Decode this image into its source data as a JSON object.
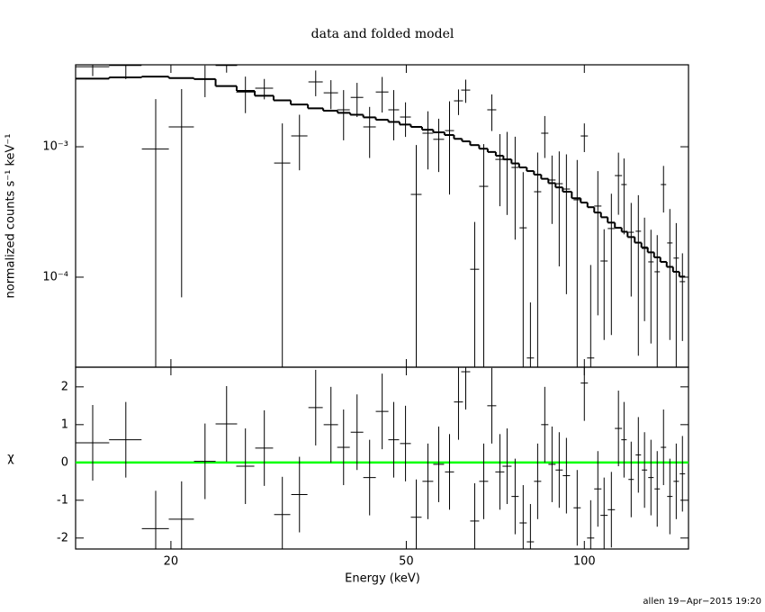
{
  "chart_data": [
    {
      "type": "errorbar",
      "title": "data and folded model",
      "ylabel": "normalized counts s⁻¹ keV⁻¹",
      "xscale": "log",
      "yscale": "log",
      "xlim": [
        13.8,
        150
      ],
      "ylim": [
        2.04e-05,
        0.00425
      ],
      "xticks": [
        20,
        50,
        100
      ],
      "yticks": [
        {
          "value": 0.001,
          "label": "10⁻³"
        },
        {
          "value": 0.0001,
          "label": "10⁻⁴"
        }
      ],
      "x": [
        14.75,
        16.78,
        18.85,
        20.85,
        22.84,
        24.84,
        26.73,
        28.77,
        30.86,
        32.99,
        35.14,
        37.29,
        39.17,
        41.28,
        43.35,
        45.52,
        47.62,
        49.85,
        51.98,
        54.39,
        56.73,
        59.17,
        61.27,
        63.02,
        65.26,
        67.59,
        69.75,
        71.98,
        74.02,
        76.38,
        78.81,
        81.07,
        83.38,
        85.73,
        88.18,
        90.68,
        93.26,
        97.25,
        100.0,
        102.5,
        105.4,
        108.0,
        111.1,
        114.2,
        116.7,
        120.0,
        123.4,
        126.4,
        129.6,
        132.8,
        136.1,
        139.5,
        143.0,
        146.5
      ],
      "xerr": [
        0.98,
        1.06,
        0.99,
        1.02,
        0.96,
        1.04,
        0.94,
        1.0,
        0.97,
        1.04,
        0.98,
        1.04,
        0.96,
        1.01,
        1.06,
        1.12,
        1.0,
        1.05,
        1.09,
        1.14,
        1.19,
        1.04,
        1.07,
        1.1,
        1.14,
        1.18,
        1.22,
        1.26,
        1.3,
        1.07,
        1.1,
        1.13,
        1.17,
        1.2,
        1.23,
        1.27,
        1.31,
        1.36,
        1.4,
        1.43,
        1.48,
        1.51,
        1.56,
        1.6,
        1.23,
        1.26,
        1.3,
        1.33,
        1.36,
        1.39,
        1.43,
        1.46,
        1.5,
        1.54
      ],
      "series": [
        {
          "color": "#000000",
          "values": [
            0.00411,
            0.0042,
            0.00096,
            0.00142,
            0.0033,
            0.0042,
            0.00263,
            0.00281,
            0.000751,
            0.00121,
            0.00314,
            0.00259,
            0.00192,
            0.00239,
            0.00142,
            0.00263,
            0.00192,
            0.00169,
            0.000431,
            0.00127,
            0.00114,
            0.00133,
            0.00225,
            0.00272,
            0.000115,
            0.000497,
            0.00192,
            0.0008,
            0.0008,
            0.000694,
            0.000239,
            2.4e-05,
            0.000452,
            0.00127,
            0.000556,
            0.000521,
            0.000474,
            0.000392,
            0.00121,
            2.4e-05,
            0.000351,
            0.000133,
            0.000236,
            0.000601,
            0.000513,
            0.000221,
            0.000225,
            0.000166,
            0.000131,
            0.00011,
            0.000513,
            0.000183,
            0.00014,
            9.24e-05
          ],
          "yerr": [
            0.00063,
            0.0009,
            0.00136,
            0.00135,
            0.0009,
            0.0005,
            0.00082,
            0.0005,
            0.00076,
            0.00055,
            0.0007,
            0.00065,
            0.0008,
            0.0007,
            0.0006,
            0.0008,
            0.0008,
            0.0005,
            0.0006,
            0.0006,
            0.0005,
            0.0009,
            0.0005,
            0.00055,
            0.00015,
            0.00055,
            0.0006,
            0.00045,
            0.0005,
            0.0005,
            0.0004,
            4e-05,
            0.00045,
            0.00045,
            0.0003,
            0.0004,
            0.0004,
            0.0004,
            0.0003,
            0.0001,
            0.0003,
            0.0001,
            0.0002,
            0.0003,
            0.0003,
            0.00015,
            0.0002,
            0.00012,
            0.0001,
            0.0001,
            0.0002,
            0.00015,
            0.00012,
            6e-05
          ]
        },
        {
          "color": "#000000",
          "step": true,
          "values": [
            0.00333,
            0.0034,
            0.00345,
            0.00336,
            0.0033,
            0.00292,
            0.00268,
            0.00246,
            0.00227,
            0.00211,
            0.00197,
            0.00189,
            0.00182,
            0.00176,
            0.00168,
            0.00161,
            0.00155,
            0.00148,
            0.00142,
            0.00135,
            0.00129,
            0.00123,
            0.00115,
            0.0011,
            0.00103,
            0.000966,
            0.000912,
            0.000853,
            0.0008,
            0.000745,
            0.000694,
            0.000651,
            0.000611,
            0.000568,
            0.000526,
            0.000488,
            0.000452,
            0.000403,
            0.000373,
            0.000344,
            0.000313,
            0.000288,
            0.000262,
            0.000239,
            0.000223,
            0.000203,
            0.000184,
            0.000169,
            0.000155,
            0.000142,
            0.000131,
            0.00012,
            0.00011,
            0.000101
          ]
        }
      ]
    },
    {
      "type": "errorbar",
      "ylabel": "χ",
      "xlabel": "Energy (keV)",
      "xscale": "log",
      "xlim": [
        13.8,
        150
      ],
      "ylim": [
        -2.29,
        2.52
      ],
      "xticks": [
        20,
        50,
        100
      ],
      "yticks": [
        -2,
        -1,
        0,
        1,
        2
      ],
      "hline": 0,
      "hline_color": "#00ff00",
      "x": [
        14.75,
        16.78,
        18.85,
        20.85,
        22.84,
        24.84,
        26.73,
        28.77,
        30.86,
        32.99,
        35.14,
        37.29,
        39.17,
        41.28,
        43.35,
        45.52,
        47.62,
        49.85,
        51.98,
        54.39,
        56.73,
        59.17,
        61.27,
        63.02,
        65.26,
        67.59,
        69.75,
        71.98,
        74.02,
        76.38,
        78.81,
        81.07,
        83.38,
        85.73,
        88.18,
        90.68,
        93.26,
        97.25,
        100.0,
        102.5,
        105.4,
        108.0,
        111.1,
        114.2,
        116.7,
        120.0,
        123.4,
        126.4,
        129.6,
        132.8,
        136.1,
        139.5,
        143.0,
        146.5
      ],
      "xerr": [
        0.98,
        1.06,
        0.99,
        1.02,
        0.96,
        1.04,
        0.94,
        1.0,
        0.97,
        1.04,
        0.98,
        1.04,
        0.96,
        1.01,
        1.06,
        1.12,
        1.0,
        1.05,
        1.09,
        1.14,
        1.19,
        1.04,
        1.07,
        1.1,
        1.14,
        1.18,
        1.22,
        1.26,
        1.3,
        1.07,
        1.1,
        1.13,
        1.17,
        1.2,
        1.23,
        1.27,
        1.31,
        1.36,
        1.4,
        1.43,
        1.48,
        1.51,
        1.56,
        1.6,
        1.23,
        1.26,
        1.3,
        1.33,
        1.36,
        1.39,
        1.43,
        1.46,
        1.5,
        1.54
      ],
      "series": [
        {
          "color": "#000000",
          "values": [
            0.52,
            0.6,
            -1.75,
            -1.5,
            0.03,
            1.02,
            -0.1,
            0.38,
            -1.38,
            -0.85,
            1.45,
            1.0,
            0.4,
            0.8,
            -0.4,
            1.35,
            0.6,
            0.5,
            -1.45,
            -0.5,
            -0.05,
            -0.25,
            1.6,
            2.4,
            -1.55,
            -0.5,
            1.5,
            -0.25,
            -0.1,
            -0.9,
            -1.6,
            -2.1,
            -0.5,
            1.0,
            -0.05,
            -0.2,
            -0.35,
            -1.2,
            2.1,
            -2.0,
            -0.7,
            -1.4,
            -1.25,
            0.9,
            0.6,
            -0.45,
            0.2,
            -0.2,
            -0.4,
            -0.7,
            0.4,
            -0.9,
            -0.5,
            -0.3
          ],
          "yerr": [
            1,
            1,
            1,
            1,
            1,
            1,
            1,
            1,
            1,
            1,
            1,
            1,
            1,
            1,
            1,
            1,
            1,
            1,
            1,
            1,
            1,
            1,
            1,
            1,
            1,
            1,
            1,
            1,
            1,
            1,
            1,
            1,
            1,
            1,
            1,
            1,
            1,
            1,
            1,
            1,
            1,
            1,
            1,
            1,
            1,
            1,
            1,
            1,
            1,
            1,
            1,
            1,
            1,
            1
          ]
        }
      ]
    }
  ],
  "footer": "allen 19−Apr−2015 19:20"
}
